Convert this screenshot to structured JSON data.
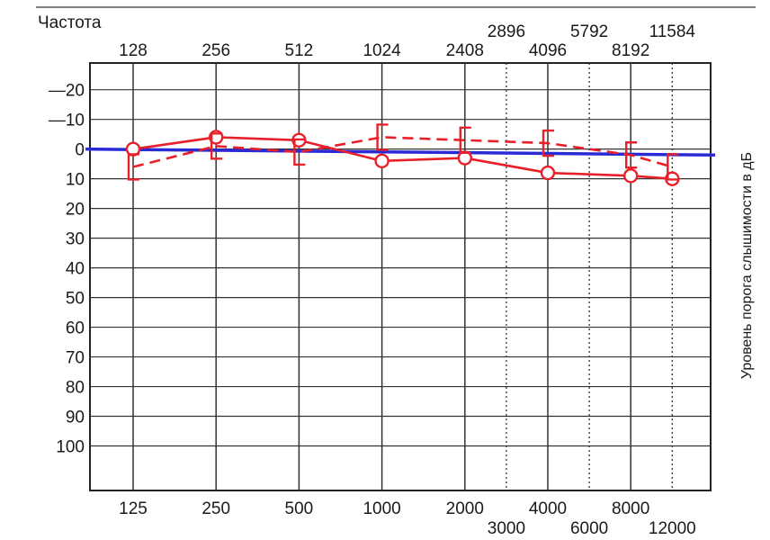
{
  "chart_data": {
    "type": "line",
    "title": "",
    "top_label": "Частота",
    "ylabel": "Уровень порога слышимости в дБ",
    "xlabel": "",
    "top_ticks": [
      {
        "pos": 0,
        "label": "128"
      },
      {
        "pos": 1,
        "label": "256"
      },
      {
        "pos": 2,
        "label": "512"
      },
      {
        "pos": 3,
        "label": "1024"
      },
      {
        "pos": 4,
        "label": "2408"
      },
      {
        "pos": 4.5,
        "label": "2896"
      },
      {
        "pos": 5,
        "label": "4096"
      },
      {
        "pos": 5.5,
        "label": "5792"
      },
      {
        "pos": 6,
        "label": "8192"
      },
      {
        "pos": 6.5,
        "label": "11584"
      }
    ],
    "bottom_ticks": [
      {
        "pos": 0,
        "label": "125"
      },
      {
        "pos": 1,
        "label": "250"
      },
      {
        "pos": 2,
        "label": "500"
      },
      {
        "pos": 3,
        "label": "1000"
      },
      {
        "pos": 4,
        "label": "2000"
      },
      {
        "pos": 4.5,
        "label": "3000"
      },
      {
        "pos": 5,
        "label": "4000"
      },
      {
        "pos": 5.5,
        "label": "6000"
      },
      {
        "pos": 6,
        "label": "8000"
      },
      {
        "pos": 6.5,
        "label": "12000"
      }
    ],
    "y_ticks": [
      {
        "value": -20,
        "label": "—20"
      },
      {
        "value": -10,
        "label": "—10"
      },
      {
        "value": 0,
        "label": "0"
      },
      {
        "value": 10,
        "label": "10"
      },
      {
        "value": 20,
        "label": "20"
      },
      {
        "value": 30,
        "label": "30"
      },
      {
        "value": 40,
        "label": "40"
      },
      {
        "value": 50,
        "label": "50"
      },
      {
        "value": 60,
        "label": "60"
      },
      {
        "value": 70,
        "label": "70"
      },
      {
        "value": 80,
        "label": "80"
      },
      {
        "value": 90,
        "label": "90"
      },
      {
        "value": 100,
        "label": "100"
      }
    ],
    "ylim": [
      -29,
      115
    ],
    "y_inverted": true,
    "grid": true,
    "dotted_columns": [
      4.5,
      5.5,
      6.5
    ],
    "reference_line": {
      "y_start": 0,
      "y_end": 2,
      "color": "#2b2bd6"
    },
    "series": [
      {
        "marker": "circle",
        "style": "solid",
        "color": "#e8202a",
        "points": [
          {
            "x": 0,
            "y": 0
          },
          {
            "x": 1,
            "y": -4
          },
          {
            "x": 2,
            "y": -3
          },
          {
            "x": 3,
            "y": 4
          },
          {
            "x": 4,
            "y": 3
          },
          {
            "x": 5,
            "y": 8
          },
          {
            "x": 6,
            "y": 9
          },
          {
            "x": 6.5,
            "y": 10
          }
        ]
      },
      {
        "marker": "bracket",
        "style": "dashed",
        "color": "#e8202a",
        "points": [
          {
            "x": 0,
            "y": 6
          },
          {
            "x": 1,
            "y": -1
          },
          {
            "x": 2,
            "y": 1
          },
          {
            "x": 3,
            "y": -4
          },
          {
            "x": 4,
            "y": -3
          },
          {
            "x": 5,
            "y": -2
          },
          {
            "x": 6,
            "y": 2
          },
          {
            "x": 6.5,
            "y": 6
          }
        ]
      }
    ]
  }
}
